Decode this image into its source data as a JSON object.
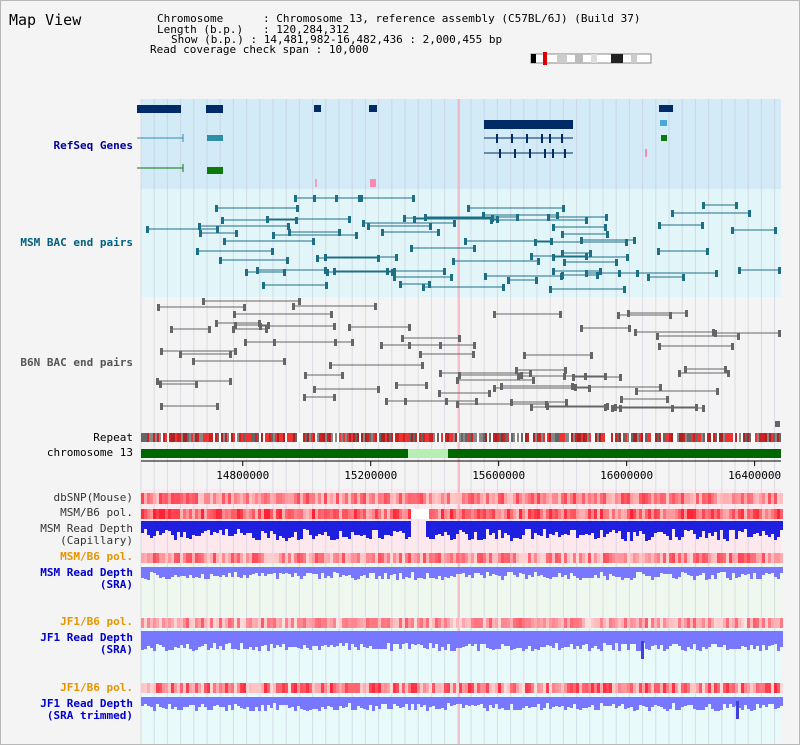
{
  "title": "Map View",
  "info": {
    "chromosome_label": "Chromosome",
    "chromosome_value": "Chromosome 13, reference assembly (C57BL/6J) (Build 37)",
    "length_label": "Length (b.p.)",
    "length_value": "120,284,312",
    "show_label": "Show (b.p.)",
    "show_value": "14,481,982-16,482,436 : 2,000,455 bp",
    "coverage_label": "Read coverage check span",
    "coverage_value": "10,000"
  },
  "tracks": {
    "refseq": "RefSeq Genes",
    "msm_bac": "MSM BAC end pairs",
    "b6n_bac": "B6N BAC end pairs",
    "repeat": "Repeat",
    "chromosome": "chromosome 13",
    "dbsnp": "dbSNP(Mouse)",
    "msm_b6_pol_1": "MSM/B6 pol.",
    "msm_depth_cap_1": "MSM Read Depth",
    "msm_depth_cap_2": "(Capillary)",
    "msm_b6_pol_2": "MSM/B6 pol.",
    "msm_depth_sra_1": "MSM Read Depth",
    "msm_depth_sra_2": "(SRA)",
    "jf1_b6_pol_1": "JF1/B6 pol.",
    "jf1_depth_sra_1": "JF1 Read Depth",
    "jf1_depth_sra_2": "(SRA)",
    "jf1_b6_pol_2": "JF1/B6 pol.",
    "jf1_depth_trim_1": "JF1 Read Depth",
    "jf1_depth_trim_2": "(SRA trimmed)"
  },
  "axis": {
    "ticks": [
      "14800000",
      "15200000",
      "15600000",
      "16000000",
      "16400000"
    ],
    "tick_values": [
      14800000,
      15200000,
      15600000,
      16000000,
      16400000
    ],
    "start": 14481982,
    "end": 16482436
  },
  "colors": {
    "refseq_bg": "#d2ebf7",
    "bac_bg": "#e2f5f8",
    "b6n_bg": "#f4f4f4",
    "gene_navy": "#002b66",
    "gene_teal": "#2f8fa8",
    "gene_green": "#0b7a0b",
    "bac_teal": "#1d6f86",
    "bac_gray": "#666666",
    "chrom_green": "#006600",
    "depth_blue": "#2020ee",
    "depth_sra": "#7777ff",
    "pol_red": "#ee2222"
  }
}
